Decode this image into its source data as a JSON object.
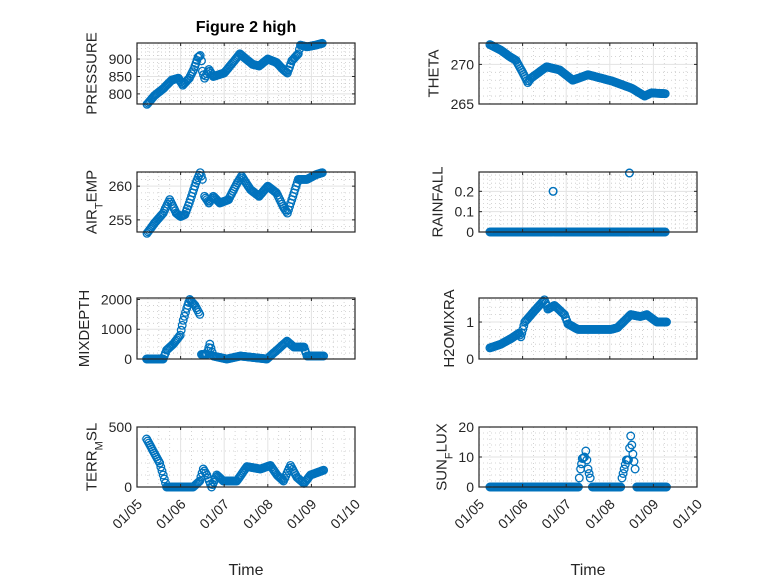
{
  "title": "Figure 2 high",
  "chart_data": {
    "type": "scatter",
    "marker": "circle-open",
    "color": "#0072BD",
    "x_units": "days since 01/05",
    "x_tick_labels": [
      "01/05",
      "01/06",
      "01/07",
      "01/08",
      "01/09",
      "01/10"
    ],
    "xlim": [
      0,
      5
    ],
    "xlabel": "Time",
    "grid": "major+minor",
    "subplots": [
      {
        "id": "pressure",
        "col": 0,
        "row": 0,
        "ylabel_parts": [
          "PRESSURE"
        ],
        "ylim": [
          771,
          946
        ],
        "yticks": [
          800,
          850,
          900
        ],
        "ytick_labels": [
          "800",
          "850",
          "900"
        ],
        "points": [
          [
            0.23,
            770
          ],
          [
            0.4,
            795
          ],
          [
            0.6,
            815
          ],
          [
            0.8,
            840
          ],
          [
            0.95,
            845
          ],
          [
            1.05,
            825
          ],
          [
            1.2,
            845
          ],
          [
            1.3,
            870
          ],
          [
            1.4,
            905
          ],
          [
            1.45,
            910
          ],
          [
            1.48,
            895
          ],
          null,
          [
            1.5,
            865
          ],
          [
            1.55,
            845
          ],
          [
            1.65,
            870
          ],
          [
            1.75,
            850
          ],
          [
            2.0,
            860
          ],
          [
            2.2,
            890
          ],
          [
            2.36,
            915
          ],
          [
            2.5,
            900
          ],
          [
            2.65,
            885
          ],
          [
            2.8,
            880
          ],
          [
            3.0,
            900
          ],
          [
            3.2,
            890
          ],
          [
            3.35,
            870
          ],
          [
            3.45,
            860
          ],
          [
            3.55,
            895
          ],
          [
            3.7,
            915
          ],
          [
            3.75,
            940
          ],
          [
            3.9,
            935
          ],
          [
            4.1,
            940
          ],
          [
            4.25,
            945
          ]
        ]
      },
      {
        "id": "theta",
        "col": 1,
        "row": 0,
        "ylabel_parts": [
          "THETA"
        ],
        "ylim": [
          265,
          272.7
        ],
        "yticks": [
          265,
          270
        ],
        "ytick_labels": [
          "265",
          "270"
        ],
        "points": [
          [
            0.25,
            272.5
          ],
          [
            0.5,
            271.8
          ],
          [
            0.7,
            271
          ],
          [
            0.85,
            270.5
          ],
          [
            1.0,
            269
          ],
          [
            1.12,
            267.7
          ],
          [
            1.2,
            268.3
          ],
          [
            1.55,
            269.7
          ],
          [
            1.85,
            269.3
          ],
          [
            2.15,
            268
          ],
          [
            2.5,
            268.7
          ],
          [
            3.05,
            267.9
          ],
          [
            3.5,
            267
          ],
          [
            3.8,
            266
          ],
          [
            3.95,
            266.4
          ],
          [
            4.27,
            266.3
          ]
        ]
      },
      {
        "id": "air_temp",
        "col": 0,
        "row": 1,
        "ylabel_parts": [
          "AIR",
          "T",
          "EMP"
        ],
        "ylim": [
          253.2,
          262.1
        ],
        "yticks": [
          255,
          260
        ],
        "ytick_labels": [
          "255",
          "260"
        ],
        "points": [
          [
            0.23,
            253
          ],
          [
            0.4,
            254.5
          ],
          [
            0.6,
            256
          ],
          [
            0.75,
            258
          ],
          [
            0.9,
            256
          ],
          [
            1.0,
            255.5
          ],
          [
            1.1,
            255.8
          ],
          [
            1.2,
            257.5
          ],
          [
            1.35,
            260.5
          ],
          [
            1.45,
            262
          ],
          [
            1.5,
            261
          ],
          null,
          [
            1.55,
            258.5
          ],
          [
            1.65,
            257.5
          ],
          [
            1.75,
            258.5
          ],
          [
            1.9,
            257.5
          ],
          [
            2.1,
            258
          ],
          [
            2.3,
            260.5
          ],
          [
            2.4,
            261.5
          ],
          [
            2.6,
            259.5
          ],
          [
            2.8,
            258.5
          ],
          [
            3.0,
            260
          ],
          [
            3.2,
            259
          ],
          [
            3.35,
            257
          ],
          [
            3.45,
            256
          ],
          [
            3.55,
            258
          ],
          [
            3.7,
            261
          ],
          [
            3.9,
            261
          ],
          [
            4.1,
            261.7
          ],
          [
            4.25,
            262
          ]
        ]
      },
      {
        "id": "rainfall",
        "col": 1,
        "row": 1,
        "ylabel_parts": [
          "RAINFALL"
        ],
        "ylim": [
          0,
          0.295
        ],
        "yticks": [
          0,
          0.1,
          0.2
        ],
        "ytick_labels": [
          "0",
          "0.1",
          "0.2"
        ],
        "points": [
          [
            0.25,
            0
          ],
          [
            1.68,
            0
          ],
          null,
          [
            1.7,
            0.2
          ],
          null,
          [
            1.72,
            0
          ],
          [
            3.43,
            0
          ],
          null,
          [
            3.45,
            0.29
          ],
          null,
          [
            3.47,
            0
          ],
          [
            4.27,
            0
          ]
        ]
      },
      {
        "id": "mixdepth",
        "col": 0,
        "row": 2,
        "ylabel_parts": [
          "MIXDEPTH"
        ],
        "ylim": [
          0,
          2050
        ],
        "yticks": [
          0,
          1000,
          2000
        ],
        "ytick_labels": [
          "0",
          "1000",
          "2000"
        ],
        "points": [
          [
            0.22,
            0
          ],
          [
            0.6,
            0
          ],
          [
            0.68,
            300
          ],
          [
            0.83,
            500
          ],
          [
            0.99,
            800
          ],
          [
            1.06,
            1300
          ],
          [
            1.14,
            1700
          ],
          [
            1.21,
            2000
          ],
          [
            1.33,
            1800
          ],
          [
            1.44,
            1500
          ],
          null,
          [
            1.48,
            150
          ],
          [
            1.6,
            150
          ],
          [
            1.67,
            500
          ],
          [
            1.75,
            100
          ],
          [
            2.06,
            0
          ],
          [
            2.37,
            100
          ],
          [
            2.98,
            0
          ],
          [
            3.44,
            600
          ],
          [
            3.6,
            400
          ],
          [
            3.83,
            400
          ],
          [
            3.9,
            100
          ],
          [
            4.28,
            100
          ]
        ]
      },
      {
        "id": "h2omixra",
        "col": 1,
        "row": 2,
        "ylabel_parts": [
          "H2OMIXRA"
        ],
        "ylim": [
          0,
          1.65
        ],
        "yticks": [
          0,
          1
        ],
        "ytick_labels": [
          "0",
          "1"
        ],
        "points": [
          [
            0.25,
            0.3
          ],
          [
            0.5,
            0.4
          ],
          [
            0.73,
            0.55
          ],
          [
            0.92,
            0.7
          ],
          [
            0.96,
            0.6
          ],
          [
            1.05,
            1.0
          ],
          [
            1.27,
            1.3
          ],
          [
            1.5,
            1.6
          ],
          [
            1.58,
            1.35
          ],
          [
            1.73,
            1.45
          ],
          [
            1.96,
            1.2
          ],
          [
            2.04,
            0.95
          ],
          [
            2.27,
            0.8
          ],
          [
            3.03,
            0.8
          ],
          [
            3.18,
            0.85
          ],
          [
            3.48,
            1.2
          ],
          [
            3.7,
            1.15
          ],
          [
            3.85,
            1.2
          ],
          [
            4.08,
            1.0
          ],
          [
            4.3,
            1.0
          ]
        ]
      },
      {
        "id": "terr_msl",
        "col": 0,
        "row": 3,
        "ylabel_parts": [
          "TERR",
          "M",
          "SL"
        ],
        "ylim": [
          0,
          500
        ],
        "yticks": [
          0,
          500
        ],
        "ytick_labels": [
          "0",
          "500"
        ],
        "points": [
          [
            0.22,
            400
          ],
          [
            0.37,
            300
          ],
          [
            0.52,
            200
          ],
          [
            0.68,
            0
          ],
          [
            1.29,
            0
          ],
          [
            1.44,
            50
          ],
          [
            1.52,
            150
          ],
          [
            1.6,
            100
          ],
          [
            1.71,
            0
          ],
          [
            1.83,
            100
          ],
          [
            1.98,
            50
          ],
          [
            2.29,
            50
          ],
          [
            2.52,
            170
          ],
          [
            2.83,
            150
          ],
          [
            3.06,
            180
          ],
          [
            3.21,
            100
          ],
          [
            3.36,
            50
          ],
          [
            3.52,
            180
          ],
          [
            3.67,
            80
          ],
          [
            3.83,
            30
          ],
          [
            3.98,
            100
          ],
          [
            4.28,
            140
          ]
        ]
      },
      {
        "id": "sun_flux",
        "col": 1,
        "row": 3,
        "ylabel_parts": [
          "SUN",
          "F",
          "LUX"
        ],
        "ylim": [
          0,
          20
        ],
        "yticks": [
          0,
          10,
          20
        ],
        "ytick_labels": [
          "0",
          "10",
          "20"
        ],
        "points": [
          [
            0.25,
            0
          ],
          [
            2.28,
            0
          ],
          null,
          [
            2.3,
            3
          ],
          [
            2.33,
            6
          ],
          [
            2.37,
            9.5
          ],
          [
            2.42,
            10
          ],
          [
            2.45,
            12
          ],
          [
            2.5,
            6
          ],
          [
            2.55,
            3
          ],
          null,
          [
            2.6,
            0
          ],
          [
            3.25,
            0
          ],
          null,
          [
            3.28,
            3
          ],
          [
            3.33,
            6
          ],
          [
            3.38,
            9
          ],
          [
            3.43,
            9
          ],
          [
            3.48,
            17
          ],
          [
            3.53,
            11
          ],
          [
            3.58,
            6
          ],
          null,
          [
            3.62,
            0
          ],
          [
            4.3,
            0
          ]
        ]
      }
    ]
  }
}
